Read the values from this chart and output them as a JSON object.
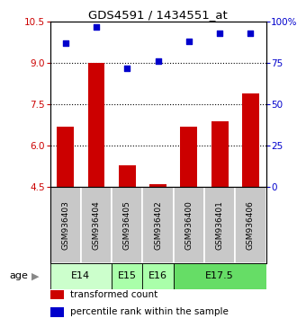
{
  "title": "GDS4591 / 1434551_at",
  "samples": [
    "GSM936403",
    "GSM936404",
    "GSM936405",
    "GSM936402",
    "GSM936400",
    "GSM936401",
    "GSM936406"
  ],
  "bar_values": [
    6.7,
    9.0,
    5.3,
    4.6,
    6.7,
    6.9,
    7.9
  ],
  "scatter_values": [
    87,
    97,
    72,
    76,
    88,
    93,
    93
  ],
  "bar_color": "#cc0000",
  "scatter_color": "#0000cc",
  "ylim_left": [
    4.5,
    10.5
  ],
  "ylim_right": [
    0,
    100
  ],
  "yticks_left": [
    4.5,
    6.0,
    7.5,
    9.0,
    10.5
  ],
  "yticks_right": [
    0,
    25,
    50,
    75,
    100
  ],
  "ytick_labels_right": [
    "0",
    "25",
    "50",
    "75",
    "100%"
  ],
  "dotted_lines": [
    9.0,
    7.5,
    6.0
  ],
  "age_groups": [
    {
      "label": "E14",
      "start": 0,
      "end": 2,
      "color": "#ccffcc"
    },
    {
      "label": "E15",
      "start": 2,
      "end": 3,
      "color": "#aaffaa"
    },
    {
      "label": "E16",
      "start": 3,
      "end": 4,
      "color": "#aaffaa"
    },
    {
      "label": "E17.5",
      "start": 4,
      "end": 7,
      "color": "#66dd66"
    }
  ],
  "bar_bottom": 4.5,
  "sample_bg_color": "#c8c8c8",
  "bar_width": 0.55,
  "tick_color_left": "#cc0000",
  "tick_color_right": "#0000cc",
  "legend_items": [
    {
      "color": "#cc0000",
      "label": "transformed count"
    },
    {
      "color": "#0000cc",
      "label": "percentile rank within the sample"
    }
  ]
}
